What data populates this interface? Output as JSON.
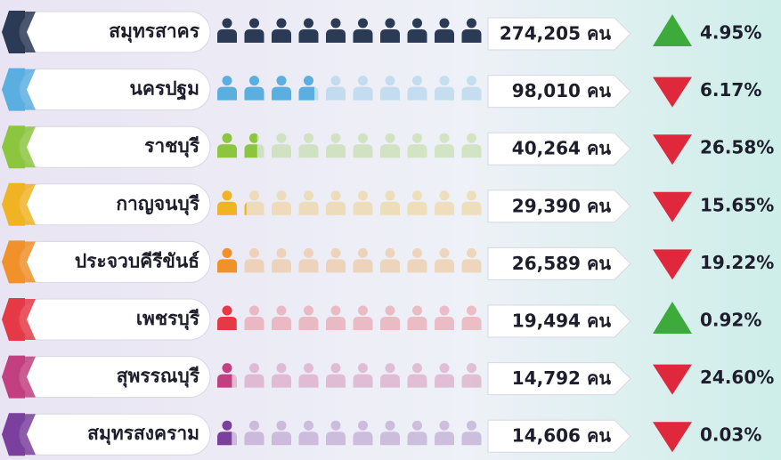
{
  "chart_data": {
    "type": "pictograph",
    "categories": [
      "สมุทรสาคร",
      "นครปฐม",
      "ราชบุรี",
      "กาญจนบุรี",
      "ประจวบคีรีขันธ์",
      "เพชรบุรี",
      "สุพรรณบุรี",
      "สมุทรสงคราม"
    ],
    "values": [
      274205,
      98010,
      40264,
      29390,
      26589,
      19494,
      14792,
      14606
    ],
    "value_labels": [
      "274,205 คน",
      "98,010 คน",
      "40,264 คน",
      "29,390 คน",
      "26,589 คน",
      "19,494 คน",
      "14,792 คน",
      "14,606 คน"
    ],
    "changes": [
      4.95,
      -6.17,
      -26.58,
      -15.65,
      -19.22,
      0.92,
      -24.6,
      -0.03
    ],
    "change_labels": [
      "4.95%",
      "6.17%",
      "26.58%",
      "15.65%",
      "19.22%",
      "0.92%",
      "24.60%",
      "0.03%"
    ],
    "colors": [
      "#2b3a55",
      "#5aaee0",
      "#8cc63f",
      "#f0b323",
      "#f0912a",
      "#e63946",
      "#c2407f",
      "#7b3f9e"
    ],
    "up_color": "#3cab3c",
    "down_color": "#e0283c"
  }
}
